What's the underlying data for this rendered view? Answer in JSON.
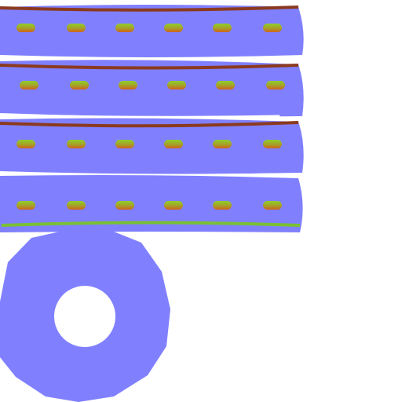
{
  "texture": {
    "band_count": 4,
    "studs_per_band": 6,
    "colors": {
      "background": "#ffffff",
      "body": "#8080ff",
      "seam": "#8b3a1f",
      "bottom_edge": "#79c034",
      "stud_top": "#8fcf2a",
      "stud_bottom": "#d0641a",
      "highlight": "#ffffff"
    }
  }
}
